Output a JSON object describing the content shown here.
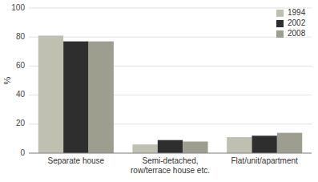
{
  "chart_data": {
    "type": "bar",
    "y_label": "%",
    "categories": [
      "Separate house",
      "Semi-detached,\nrow/terrace house etc.",
      "Flat/unit/apartment"
    ],
    "series": [
      {
        "name": "1994",
        "color": "#c0c0b0",
        "values": [
          81,
          6,
          11
        ]
      },
      {
        "name": "2002",
        "color": "#2e2e2e",
        "values": [
          77,
          9,
          12
        ]
      },
      {
        "name": "2008",
        "color": "#9e9e8e",
        "values": [
          77,
          8,
          14
        ]
      }
    ],
    "ylim": [
      0,
      100
    ],
    "yticks": [
      0,
      20,
      40,
      60,
      80,
      100
    ],
    "grid": true,
    "legend": "upper right"
  }
}
